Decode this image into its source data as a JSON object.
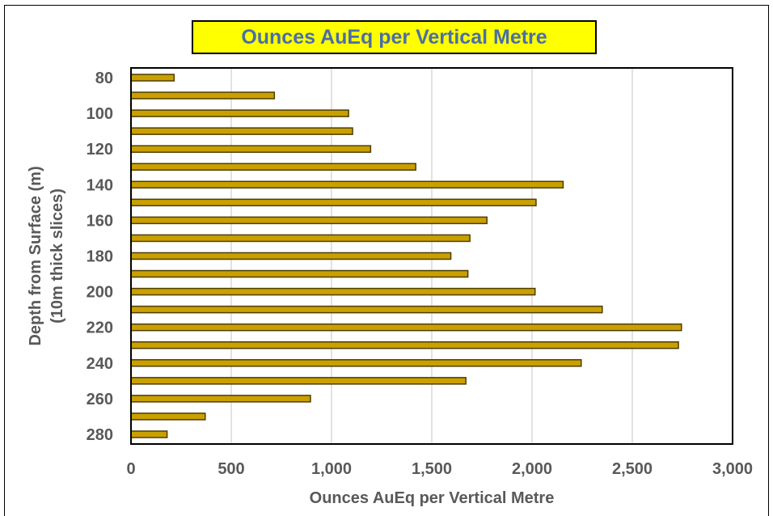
{
  "chart_data": {
    "type": "bar",
    "orientation": "horizontal",
    "title": "Ounces AuEq per Vertical Metre",
    "xlabel": "Ounces AuEq per Vertical Metre",
    "ylabel_lines": [
      "Depth from Surface (m)",
      "(10m thick slices)"
    ],
    "categories": [
      80,
      90,
      100,
      110,
      120,
      130,
      140,
      150,
      160,
      170,
      180,
      190,
      200,
      210,
      220,
      230,
      240,
      250,
      260,
      270,
      280
    ],
    "y_tick_labels": [
      "80",
      "100",
      "120",
      "140",
      "160",
      "180",
      "200",
      "220",
      "240",
      "260",
      "280"
    ],
    "values": [
      215,
      715,
      1085,
      1105,
      1195,
      1420,
      2155,
      2020,
      1775,
      1690,
      1595,
      1680,
      2015,
      2350,
      2745,
      2730,
      2245,
      1670,
      895,
      370,
      180
    ],
    "xlim": [
      0,
      3000
    ],
    "x_ticks": [
      0,
      500,
      1000,
      1500,
      2000,
      2500,
      3000
    ],
    "x_tick_labels": [
      "0",
      "500",
      "1,000",
      "1,500",
      "2,000",
      "2,500",
      "3,000"
    ],
    "grid": "vertical",
    "legend": "none",
    "colors": {
      "bar_fill": "#c9a000",
      "bar_stroke": "#4d3d00",
      "grid": "#d9d9d9",
      "title_bg": "#ffff00",
      "title_text": "#4a6ea8",
      "label_text": "#595959"
    }
  }
}
